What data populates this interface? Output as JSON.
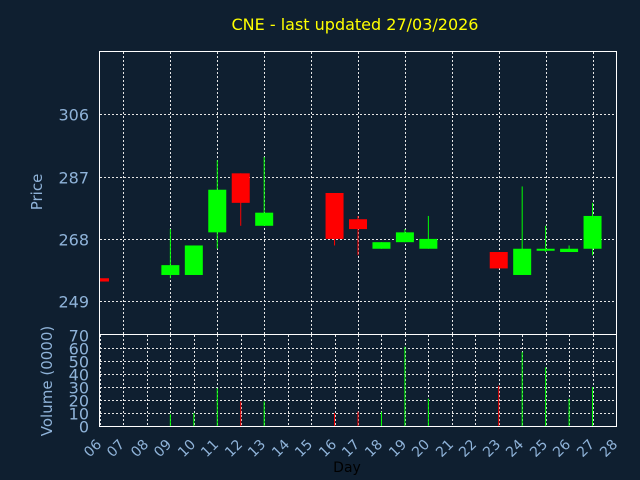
{
  "chart_data": [
    {
      "type": "candlestick",
      "title": "CNE - last updated 27/03/2026",
      "ylabel": "Price",
      "ylim": [
        239,
        325
      ],
      "yticks": [
        249,
        268,
        287,
        306
      ],
      "grid": true,
      "colors": {
        "up": "#00ff00",
        "down": "#ff0000",
        "title": "#ffff00",
        "axis_text": "#8fb3d9",
        "background": "#0f1f30"
      },
      "candles": [
        {
          "day": "06",
          "open": 256,
          "close": 255,
          "high": 256,
          "low": 255
        },
        {
          "day": "09",
          "open": 257,
          "close": 260,
          "high": 271,
          "low": 256
        },
        {
          "day": "10",
          "open": 257,
          "close": 266,
          "high": 266,
          "low": 257
        },
        {
          "day": "11",
          "open": 270,
          "close": 283,
          "high": 292,
          "low": 265
        },
        {
          "day": "12",
          "open": 288,
          "close": 279,
          "high": 288,
          "low": 272
        },
        {
          "day": "13",
          "open": 272,
          "close": 276,
          "high": 293,
          "low": 272
        },
        {
          "day": "16",
          "open": 282,
          "close": 268,
          "high": 282,
          "low": 266
        },
        {
          "day": "17",
          "open": 274,
          "close": 271,
          "high": 275,
          "low": 263
        },
        {
          "day": "18",
          "open": 265,
          "close": 267,
          "high": 267,
          "low": 265
        },
        {
          "day": "19",
          "open": 267,
          "close": 270,
          "high": 271,
          "low": 267
        },
        {
          "day": "20",
          "open": 265,
          "close": 268,
          "high": 275,
          "low": 265
        },
        {
          "day": "23",
          "open": 264,
          "close": 259,
          "high": 264,
          "low": 259
        },
        {
          "day": "24",
          "open": 257,
          "close": 265,
          "high": 284,
          "low": 257
        },
        {
          "day": "25",
          "open": 265,
          "close": 265,
          "high": 272,
          "low": 264
        },
        {
          "day": "26",
          "open": 264,
          "close": 265,
          "high": 266,
          "low": 264
        },
        {
          "day": "27",
          "open": 265,
          "close": 275,
          "high": 279,
          "low": 263
        }
      ]
    },
    {
      "type": "bar",
      "ylabel": "Volume (0000)",
      "xlabel": "Day",
      "ylim": [
        0,
        70
      ],
      "yticks": [
        0,
        10,
        20,
        30,
        40,
        50,
        60,
        70
      ],
      "categories": [
        "06",
        "07",
        "08",
        "09",
        "10",
        "11",
        "12",
        "13",
        "14",
        "15",
        "16",
        "17",
        "18",
        "19",
        "20",
        "21",
        "22",
        "23",
        "24",
        "25",
        "26",
        "27",
        "28"
      ],
      "grid": true,
      "bars": [
        {
          "day": "06",
          "value": 0,
          "direction": "down"
        },
        {
          "day": "09",
          "value": 9,
          "direction": "up"
        },
        {
          "day": "10",
          "value": 10,
          "direction": "up"
        },
        {
          "day": "11",
          "value": 29,
          "direction": "up"
        },
        {
          "day": "12",
          "value": 19,
          "direction": "down"
        },
        {
          "day": "13",
          "value": 19,
          "direction": "up"
        },
        {
          "day": "16",
          "value": 10,
          "direction": "down"
        },
        {
          "day": "17",
          "value": 11,
          "direction": "down"
        },
        {
          "day": "18",
          "value": 11,
          "direction": "up"
        },
        {
          "day": "19",
          "value": 61,
          "direction": "up"
        },
        {
          "day": "20",
          "value": 21,
          "direction": "up"
        },
        {
          "day": "23",
          "value": 31,
          "direction": "down"
        },
        {
          "day": "24",
          "value": 57,
          "direction": "up"
        },
        {
          "day": "25",
          "value": 45,
          "direction": "up"
        },
        {
          "day": "26",
          "value": 21,
          "direction": "up"
        },
        {
          "day": "27",
          "value": 30,
          "direction": "up"
        }
      ]
    }
  ]
}
